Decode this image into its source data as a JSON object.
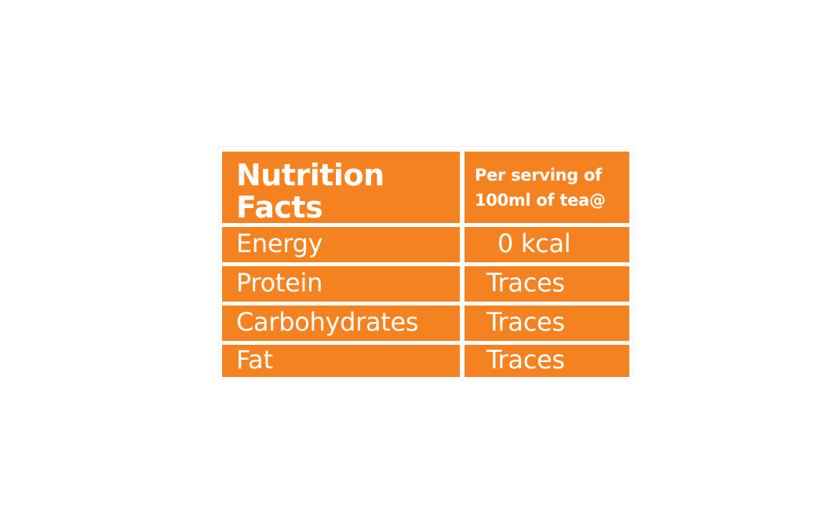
{
  "nutrition_table": {
    "title_line1": "Nutrition",
    "title_line2": "Facts",
    "serving_line1": "Per serving of",
    "serving_line2": "100ml of tea@",
    "rows": [
      {
        "nutrient": "Energy",
        "value": "0 kcal"
      },
      {
        "nutrient": "Protein",
        "value": "Traces"
      },
      {
        "nutrient": "Carbohydrates",
        "value": "Traces"
      },
      {
        "nutrient": "Fat",
        "value": "Traces"
      }
    ]
  },
  "colors": {
    "cell_background": "#f58220",
    "text": "#ffffff",
    "page_background": "#ffffff"
  }
}
